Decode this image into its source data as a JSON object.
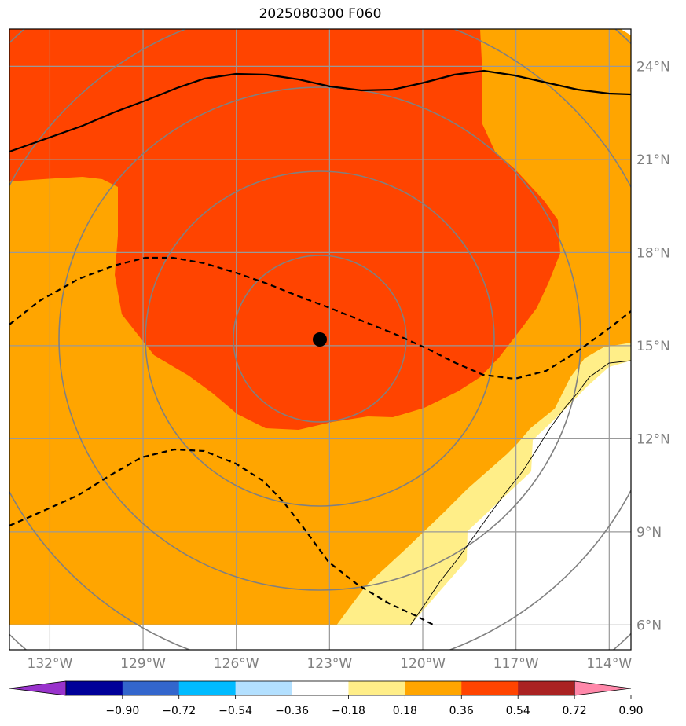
{
  "title": "2025080300 F060",
  "map": {
    "lon_range": [
      -133.3,
      -113.3
    ],
    "lat_range": [
      5.2,
      25.2
    ],
    "lon_ticks": [
      {
        "value": -132,
        "label": "132°W"
      },
      {
        "value": -129,
        "label": "129°W"
      },
      {
        "value": -126,
        "label": "126°W"
      },
      {
        "value": -123,
        "label": "123°W"
      },
      {
        "value": -120,
        "label": "120°W"
      },
      {
        "value": -117,
        "label": "117°W"
      },
      {
        "value": -114,
        "label": "114°W"
      }
    ],
    "lat_ticks": [
      {
        "value": 24,
        "label": "24°N"
      },
      {
        "value": 21,
        "label": "21°N"
      },
      {
        "value": 18,
        "label": "18°N"
      },
      {
        "value": 15,
        "label": "15°N"
      },
      {
        "value": 12,
        "label": "12°N"
      },
      {
        "value": 9,
        "label": "9°N"
      },
      {
        "value": 6,
        "label": "6°N"
      }
    ],
    "storm_center": {
      "lon": -123.3,
      "lat": 15.15
    },
    "colors": {
      "band_0_18_0_36": "#ffee88",
      "band_0_36_0_54": "#ffa500",
      "band_0_54_0_72": "#ff4400",
      "grid": "#999999",
      "range_rings": "#808080"
    }
  },
  "colorbar": {
    "colors": [
      "#9933cc",
      "#000099",
      "#3366cc",
      "#00bbff",
      "#b3e0ff",
      "#ffffff",
      "#ffee88",
      "#ffa500",
      "#ff4400",
      "#aa2222",
      "#ff88aa"
    ],
    "tick_labels": [
      "−0.90",
      "−0.72",
      "−0.54",
      "−0.36",
      "−0.18",
      "0.18",
      "0.36",
      "0.54",
      "0.72",
      "0.90"
    ]
  }
}
